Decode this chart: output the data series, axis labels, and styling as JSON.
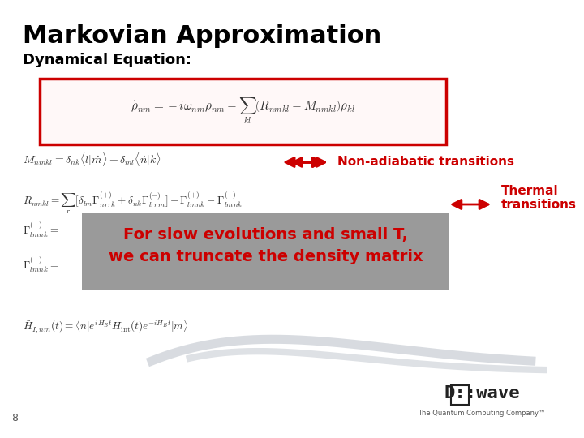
{
  "title": "Markovian Approximation",
  "subtitle": "Dynamical Equation:",
  "bg_color": "#ffffff",
  "title_color": "#000000",
  "subtitle_color": "#000000",
  "red_color": "#cc0000",
  "gray_box_color": "#888888",
  "equation_box_color": "#cc0000",
  "main_eq": "$\\dot{\\rho}_{nm} = -i\\omega_{nm}\\rho_{nm} - \\sum_{kl}\\left(R_{nmkl} - M_{nmkl}\\right)\\rho_{kl}$",
  "eq_M": "$M_{nmkl} = \\delta_{nk}\\langle l|\\dot{m}\\rangle + \\delta_{ml}\\langle \\dot{n}|k\\rangle$",
  "eq_R": "$R_{nmkl} = \\sum_r [\\delta_{lm}\\Gamma^{(+)}_{nrrk} + \\delta_{nk}\\Gamma^{(-)}_{lrrm}] - \\Gamma^{(+)}_{lmnk} - \\Gamma^{(-)}_{lmnk}$",
  "eq_Gamma_plus": "$\\Gamma^{(+)}_{lmnk} =$",
  "eq_Gamma_minus": "$\\Gamma^{(-)}_{lmnk} =$",
  "eq_H_tilde": "$\\tilde{H}_{I,nm}(t) = \\langle n|e^{iH_B t}H_{\\mathrm{int}}(t)e^{-iH_B t}|m\\rangle$",
  "label_non_adiabatic": "Non-adiabatic transitions",
  "label_thermal": "Thermal\ntransitions",
  "box_text_line1": "For slow evolutions and small T,",
  "box_text_line2": "we can truncate the density matrix",
  "page_number": "8",
  "dwave_text": "D::wave",
  "dwave_sub": "The Quantum Computing Company™",
  "wave_color": "#c8cdd4"
}
